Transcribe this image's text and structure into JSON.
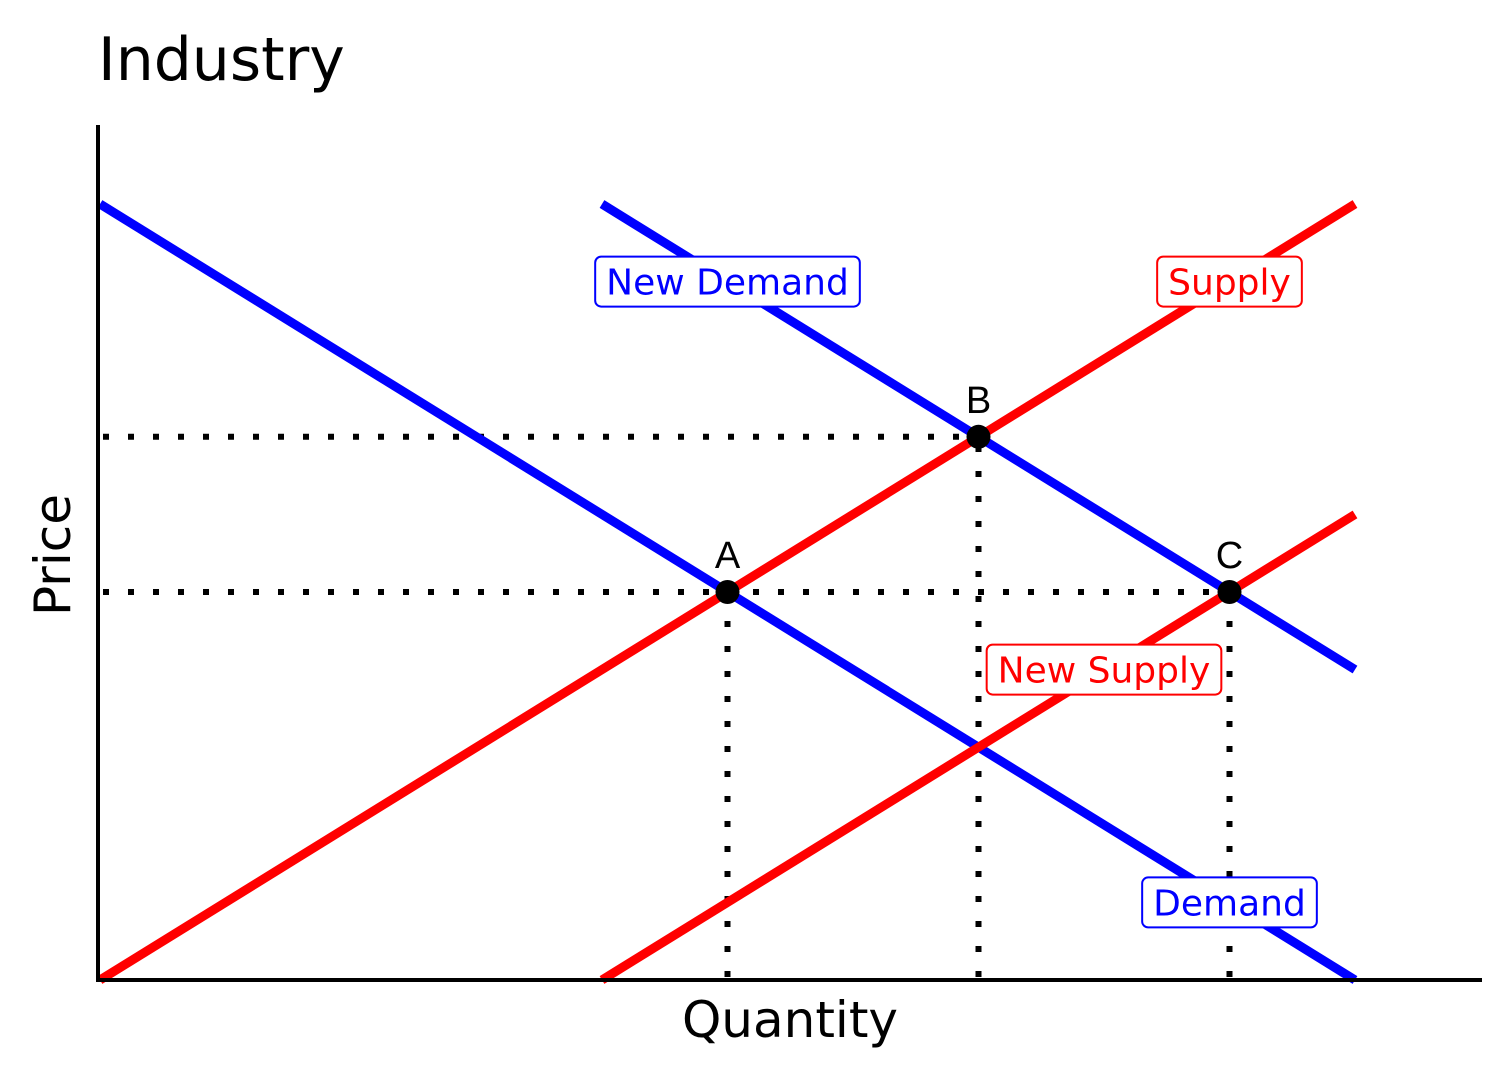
{
  "chart_data": {
    "type": "line",
    "title": "Industry",
    "xlabel": "Quantity",
    "ylabel": "Price",
    "xlim": [
      0,
      11
    ],
    "ylim": [
      0,
      10
    ],
    "grid": false,
    "ticks_shown": false,
    "series": [
      {
        "name": "Demand",
        "color": "#0000ff",
        "x": [
          0,
          10
        ],
        "y": [
          10,
          0
        ],
        "label_at": [
          9,
          1
        ]
      },
      {
        "name": "New Demand",
        "color": "#0000ff",
        "x": [
          4,
          10
        ],
        "y": [
          10,
          4
        ],
        "label_at": [
          5,
          9
        ]
      },
      {
        "name": "Supply",
        "color": "#ff0000",
        "x": [
          0,
          10
        ],
        "y": [
          0,
          10
        ],
        "label_at": [
          9,
          9
        ]
      },
      {
        "name": "New Supply",
        "color": "#ff0000",
        "x": [
          4,
          10
        ],
        "y": [
          0,
          6
        ],
        "label_at": [
          8,
          4
        ]
      }
    ],
    "points": [
      {
        "label": "A",
        "x": 5,
        "y": 5
      },
      {
        "label": "B",
        "x": 7,
        "y": 7
      },
      {
        "label": "C",
        "x": 9,
        "y": 5
      }
    ],
    "guides": [
      {
        "from": [
          0,
          7
        ],
        "to": [
          7,
          7
        ]
      },
      {
        "from": [
          0,
          5
        ],
        "to": [
          9,
          5
        ]
      },
      {
        "from": [
          5,
          0
        ],
        "to": [
          5,
          5
        ]
      },
      {
        "from": [
          7,
          0
        ],
        "to": [
          7,
          7
        ]
      },
      {
        "from": [
          9,
          0
        ],
        "to": [
          9,
          5
        ]
      }
    ]
  }
}
